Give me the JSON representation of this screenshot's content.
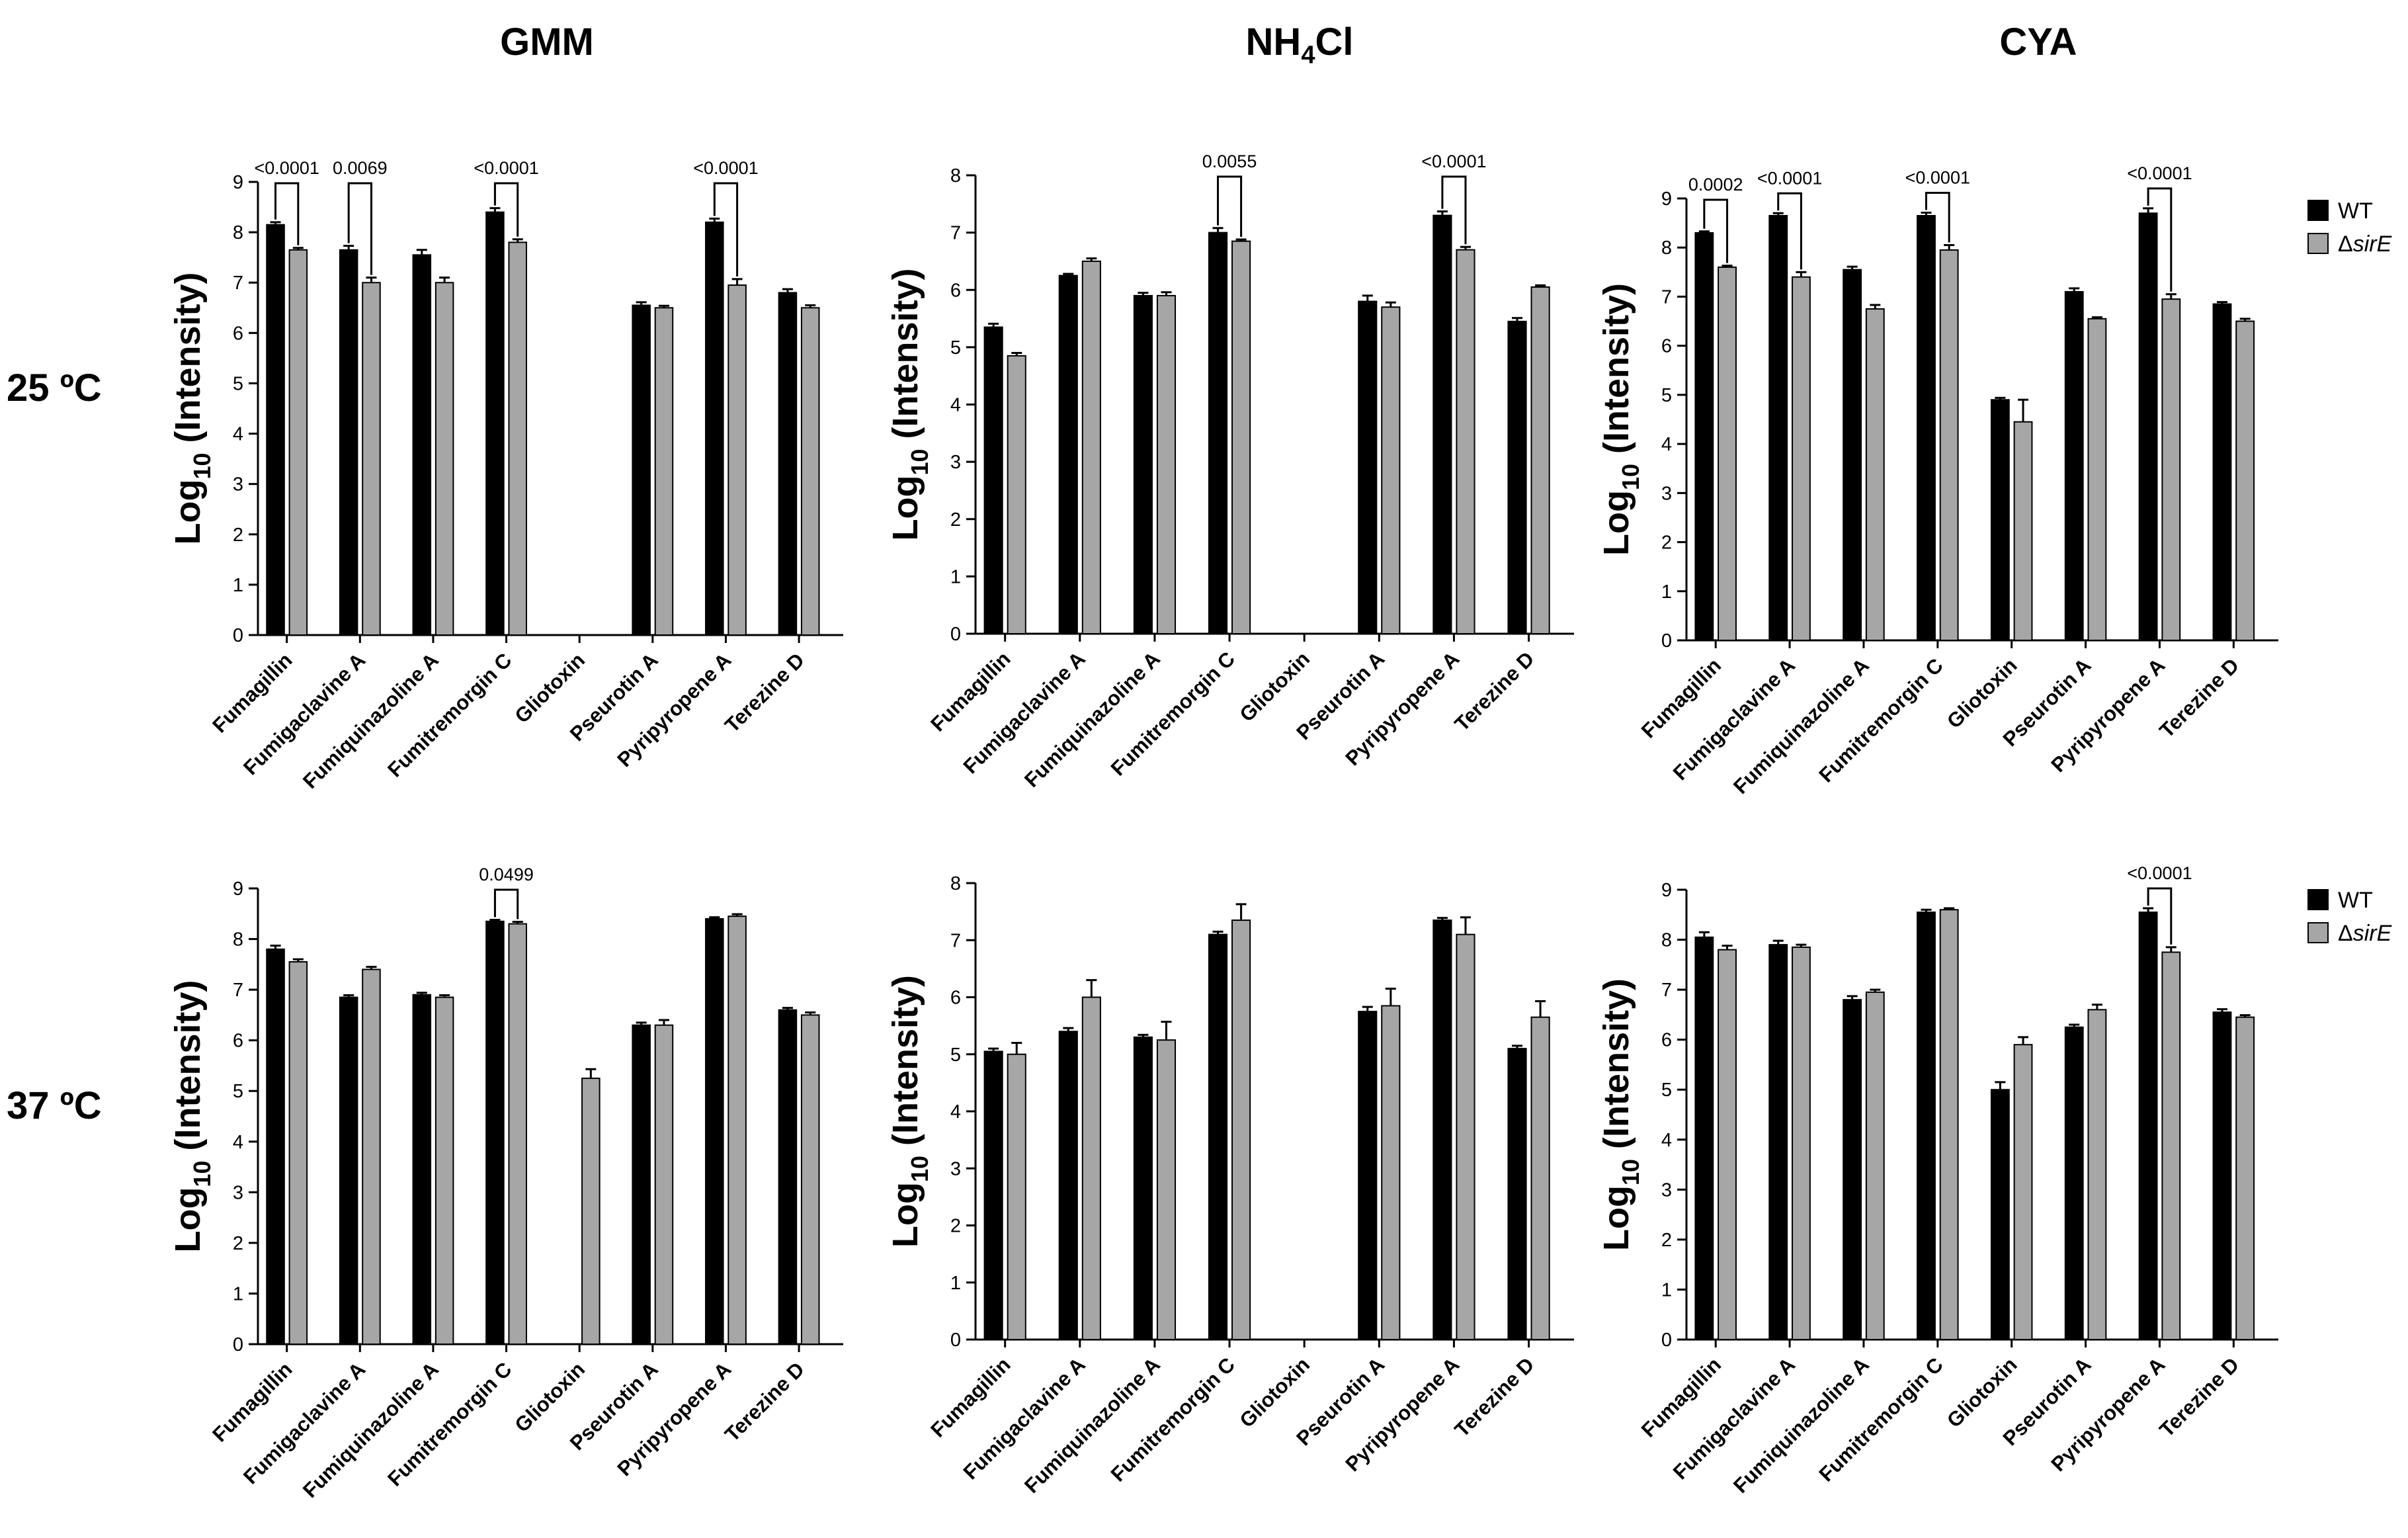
{
  "column_titles": {
    "gmm": "GMM",
    "nh4cl_main": "NH",
    "nh4cl_sub": "4",
    "nh4cl_tail": "Cl",
    "cya": "CYA"
  },
  "row_titles": {
    "r25": "25 ºC",
    "r37": "37 ºC"
  },
  "ylabel": {
    "main": "Log",
    "sub": "10",
    "tail": " (Intensity)"
  },
  "legend": {
    "wt": "WT",
    "mutant_prefix": "Δ",
    "mutant_italic": "sirE"
  },
  "colors": {
    "wt": "#000000",
    "mutant": "#a6a6a6"
  },
  "chart_data": [
    {
      "type": "bar",
      "panel": "GMM 25 ºC",
      "categories": [
        "Fumagillin",
        "Fumigaclavine A",
        "Fumiquinazoline A",
        "Fumitremorgin C",
        "Gliotoxin",
        "Pseurotin A",
        "Pyripyropene A",
        "Terezine D"
      ],
      "ylim": [
        0,
        9
      ],
      "series": [
        {
          "name": "WT",
          "values": [
            8.15,
            7.65,
            7.55,
            8.4,
            0,
            6.55,
            8.2,
            6.8
          ],
          "errors": [
            0.05,
            0.08,
            0.1,
            0.08,
            0,
            0.06,
            0.07,
            0.07
          ]
        },
        {
          "name": "ΔsirE",
          "values": [
            7.65,
            7.0,
            7.0,
            7.8,
            0,
            6.5,
            6.95,
            6.5
          ],
          "errors": [
            0.04,
            0.1,
            0.1,
            0.06,
            0,
            0.04,
            0.12,
            0.05
          ]
        }
      ],
      "annotations": [
        {
          "category": 0,
          "label": "<0.0001"
        },
        {
          "category": 1,
          "label": "0.0069"
        },
        {
          "category": 3,
          "label": "<0.0001"
        },
        {
          "category": 6,
          "label": "<0.0001"
        }
      ]
    },
    {
      "type": "bar",
      "panel": "NH4Cl 25 ºC",
      "categories": [
        "Fumagillin",
        "Fumigaclavine A",
        "Fumiquinazoline A",
        "Fumitremorgin C",
        "Gliotoxin",
        "Pseurotin A",
        "Pyripyropene A",
        "Terezine D"
      ],
      "ylim": [
        0,
        8
      ],
      "series": [
        {
          "name": "WT",
          "values": [
            5.35,
            6.25,
            5.9,
            7.0,
            0,
            5.8,
            7.3,
            5.45
          ],
          "errors": [
            0.06,
            0.03,
            0.05,
            0.08,
            0,
            0.1,
            0.07,
            0.06
          ]
        },
        {
          "name": "ΔsirE",
          "values": [
            4.85,
            6.5,
            5.9,
            6.85,
            0,
            5.7,
            6.7,
            6.05
          ],
          "errors": [
            0.05,
            0.05,
            0.06,
            0.03,
            0,
            0.08,
            0.05,
            0.03
          ]
        }
      ],
      "annotations": [
        {
          "category": 3,
          "label": "0.0055"
        },
        {
          "category": 6,
          "label": "<0.0001"
        }
      ]
    },
    {
      "type": "bar",
      "panel": "CYA 25 ºC",
      "categories": [
        "Fumagillin",
        "Fumigaclavine A",
        "Fumiquinazoline A",
        "Fumitremorgin C",
        "Gliotoxin",
        "Pseurotin A",
        "Pyripyropene A",
        "Terezine D"
      ],
      "ylim": [
        0,
        9
      ],
      "series": [
        {
          "name": "WT",
          "values": [
            8.3,
            8.65,
            7.55,
            8.65,
            4.9,
            7.1,
            8.7,
            6.85
          ],
          "errors": [
            0.03,
            0.05,
            0.06,
            0.06,
            0.04,
            0.07,
            0.1,
            0.04
          ]
        },
        {
          "name": "ΔsirE",
          "values": [
            7.6,
            7.4,
            6.75,
            7.95,
            4.45,
            6.55,
            6.95,
            6.5
          ],
          "errors": [
            0.03,
            0.1,
            0.08,
            0.1,
            0.45,
            0.03,
            0.1,
            0.05
          ]
        }
      ],
      "annotations": [
        {
          "category": 0,
          "label": "0.0002"
        },
        {
          "category": 1,
          "label": "<0.0001"
        },
        {
          "category": 3,
          "label": "<0.0001"
        },
        {
          "category": 6,
          "label": "<0.0001"
        }
      ]
    },
    {
      "type": "bar",
      "panel": "GMM 37 ºC",
      "categories": [
        "Fumagillin",
        "Fumigaclavine A",
        "Fumiquinazoline A",
        "Fumitremorgin C",
        "Gliotoxin",
        "Pseurotin A",
        "Pyripyropene A",
        "Terezine D"
      ],
      "ylim": [
        0,
        9
      ],
      "series": [
        {
          "name": "WT",
          "values": [
            7.8,
            6.85,
            6.9,
            8.35,
            0,
            6.3,
            8.4,
            6.6
          ],
          "errors": [
            0.07,
            0.04,
            0.04,
            0.03,
            0,
            0.05,
            0.03,
            0.04
          ]
        },
        {
          "name": "ΔsirE",
          "values": [
            7.55,
            7.4,
            6.85,
            8.3,
            5.25,
            6.3,
            8.45,
            6.5
          ],
          "errors": [
            0.05,
            0.05,
            0.04,
            0.04,
            0.18,
            0.1,
            0.04,
            0.05
          ]
        }
      ],
      "annotations": [
        {
          "category": 3,
          "label": "0.0499"
        }
      ]
    },
    {
      "type": "bar",
      "panel": "NH4Cl 37 ºC",
      "categories": [
        "Fumagillin",
        "Fumigaclavine A",
        "Fumiquinazoline A",
        "Fumitremorgin C",
        "Gliotoxin",
        "Pseurotin A",
        "Pyripyropene A",
        "Terezine D"
      ],
      "ylim": [
        0,
        8
      ],
      "series": [
        {
          "name": "WT",
          "values": [
            5.05,
            5.4,
            5.3,
            7.1,
            0,
            5.75,
            7.35,
            5.1
          ],
          "errors": [
            0.05,
            0.06,
            0.04,
            0.05,
            0,
            0.08,
            0.04,
            0.05
          ]
        },
        {
          "name": "ΔsirE",
          "values": [
            5.0,
            6.0,
            5.25,
            7.35,
            0,
            5.85,
            7.1,
            5.65
          ],
          "errors": [
            0.2,
            0.3,
            0.32,
            0.28,
            0,
            0.3,
            0.3,
            0.28
          ]
        }
      ],
      "annotations": []
    },
    {
      "type": "bar",
      "panel": "CYA 37 ºC",
      "categories": [
        "Fumagillin",
        "Fumigaclavine A",
        "Fumiquinazoline A",
        "Fumitremorgin C",
        "Gliotoxin",
        "Pseurotin A",
        "Pyripyropene A",
        "Terezine D"
      ],
      "ylim": [
        0,
        9
      ],
      "series": [
        {
          "name": "WT",
          "values": [
            8.05,
            7.9,
            6.8,
            8.55,
            5.0,
            6.25,
            8.55,
            6.55
          ],
          "errors": [
            0.1,
            0.08,
            0.07,
            0.05,
            0.15,
            0.05,
            0.08,
            0.06
          ]
        },
        {
          "name": "ΔsirE",
          "values": [
            7.8,
            7.85,
            6.95,
            8.6,
            5.9,
            6.6,
            7.75,
            6.45
          ],
          "errors": [
            0.08,
            0.05,
            0.05,
            0.03,
            0.15,
            0.1,
            0.1,
            0.04
          ]
        }
      ],
      "annotations": [
        {
          "category": 6,
          "label": "<0.0001"
        }
      ]
    }
  ]
}
